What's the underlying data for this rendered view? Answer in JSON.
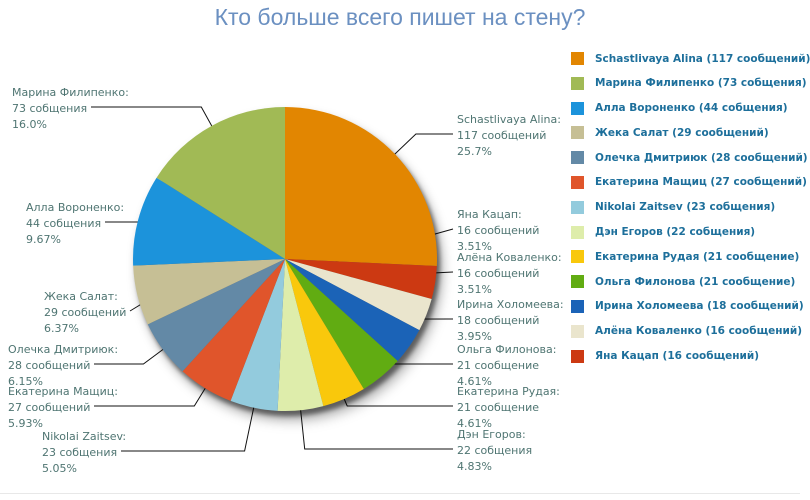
{
  "title": "Кто больше всего пишет на стену?",
  "colors": {
    "background": "#FFFFFF",
    "title_text": "#6B90C1",
    "callout_text": "#4F7572",
    "legend_text": "#1D6F9B",
    "connector_line": "#111111",
    "footer_divider": "#E8E8E8"
  },
  "chart_data": {
    "type": "pie",
    "title": "Кто больше всего пишет на стену?",
    "legend_position": "right",
    "direction": "clockwise",
    "start_angle_deg": 0,
    "slices": [
      {
        "name": "Schastlivaya Alina",
        "messages": 117,
        "percent": 25.7,
        "percent_label": "25.7%",
        "color": "#E28601",
        "legend_label": "Schastlivaya Alina (117 сообщений)",
        "callout_lines": [
          "Schastlivaya Alina:",
          "117 сообщений",
          "25.7%"
        ]
      },
      {
        "name": "Марина Филипенко",
        "messages": 73,
        "percent": 16.0,
        "percent_label": "16.0%",
        "color": "#A1BA55",
        "legend_label": "Марина Филипенко (73 собщения)",
        "callout_lines": [
          "Марина Филипенко:",
          "73 собщения",
          "16.0%"
        ]
      },
      {
        "name": "Алла Вороненко",
        "messages": 44,
        "percent": 9.67,
        "percent_label": "9.67%",
        "color": "#1C93DB",
        "legend_label": "Алла Вороненко (44 собщения)",
        "callout_lines": [
          "Алла Вороненко:",
          "44 собщения",
          "9.67%"
        ]
      },
      {
        "name": "Жека Салат",
        "messages": 29,
        "percent": 6.37,
        "percent_label": "6.37%",
        "color": "#C6BF95",
        "legend_label": "Жека Салат (29 сообщений)",
        "callout_lines": [
          "Жека Салат:",
          "29 сообщений",
          "6.37%"
        ]
      },
      {
        "name": "Олечка Дмитриюк",
        "messages": 28,
        "percent": 6.15,
        "percent_label": "6.15%",
        "color": "#6389A6",
        "legend_label": "Олечка Дмитриюк (28 сообщений)",
        "callout_lines": [
          "Олечка Дмитриюк:",
          "28 сообщений",
          "6.15%"
        ]
      },
      {
        "name": "Екатерина Мащиц",
        "messages": 27,
        "percent": 5.93,
        "percent_label": "5.93%",
        "color": "#E0552B",
        "legend_label": "Екатерина Мащиц (27 сообщений)",
        "callout_lines": [
          "Екатерина Мащиц:",
          "27 сообщений",
          "5.93%"
        ]
      },
      {
        "name": "Nikolai Zaitsev",
        "messages": 23,
        "percent": 5.05,
        "percent_label": "5.05%",
        "color": "#93CBDD",
        "legend_label": "Nikolai Zaitsev (23 собщения)",
        "callout_lines": [
          "Nikolai Zaitsev:",
          "23 собщения",
          "5.05%"
        ]
      },
      {
        "name": "Дэн Егоров",
        "messages": 22,
        "percent": 4.83,
        "percent_label": "4.83%",
        "color": "#DEEDAB",
        "legend_label": "Дэн Егоров (22 собщения)",
        "callout_lines": [
          "Дэн Егоров:",
          "22 собщения",
          "4.83%"
        ]
      },
      {
        "name": "Екатерина Рудая",
        "messages": 21,
        "percent": 4.61,
        "percent_label": "4.61%",
        "color": "#F9C80C",
        "legend_label": "Екатерина Рудая (21 сообщение)",
        "callout_lines": [
          "Екатерина Рудая:",
          "21 сообщение",
          "4.61%"
        ]
      },
      {
        "name": "Ольга Филонова",
        "messages": 21,
        "percent": 4.61,
        "percent_label": "4.61%",
        "color": "#61AC12",
        "legend_label": "Ольга Филонова (21 сообщение)",
        "callout_lines": [
          "Ольга Филонова:",
          "21 сообщение",
          "4.61%"
        ]
      },
      {
        "name": "Ирина Холомеева",
        "messages": 18,
        "percent": 3.95,
        "percent_label": "3.95%",
        "color": "#1B63B7",
        "legend_label": "Ирина Холомеева (18 сообщений)",
        "callout_lines": [
          "Ирина Холомеева:",
          "18 сообщений",
          "3.95%"
        ]
      },
      {
        "name": "Алёна Коваленко",
        "messages": 16,
        "percent": 3.51,
        "percent_label": "3.51%",
        "color": "#EAE5CD",
        "legend_label": "Алёна Коваленко (16 сообщений)",
        "callout_lines": [
          "Алёна Коваленко:",
          "16 сообщений",
          "3.51%"
        ]
      },
      {
        "name": "Яна Кацап",
        "messages": 16,
        "percent": 3.51,
        "percent_label": "3.51%",
        "color": "#CC3912",
        "legend_label": "Яна Кацап (16 сообщений)",
        "callout_lines": [
          "Яна Кацап:",
          "16 сообщений",
          "3.51%"
        ]
      }
    ],
    "clockwise_slice_order": [
      0,
      12,
      11,
      10,
      9,
      8,
      7,
      6,
      5,
      4,
      3,
      2,
      1
    ]
  }
}
